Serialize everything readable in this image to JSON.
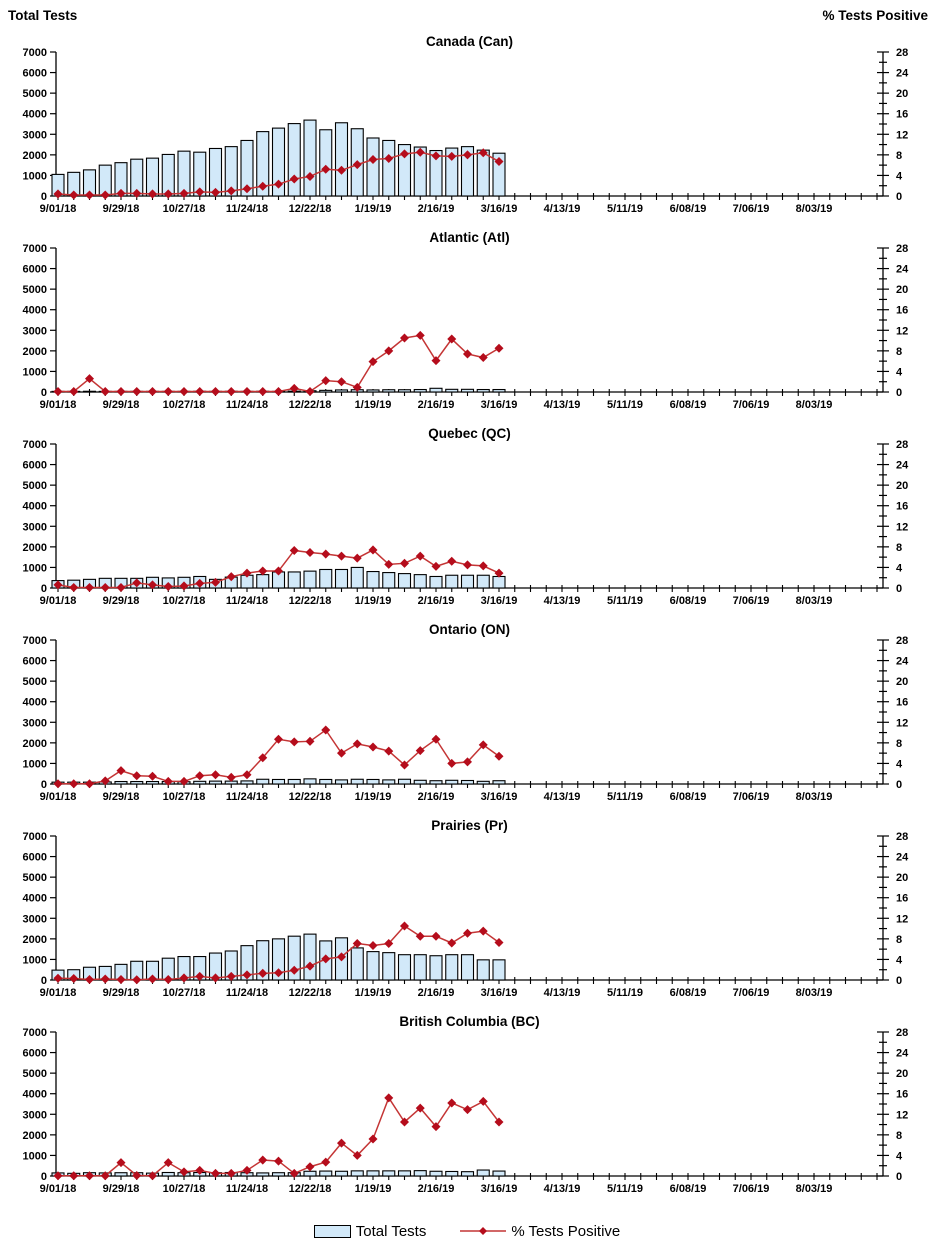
{
  "page": {
    "left_axis_title": "Total Tests",
    "right_axis_title": "% Tests Positive"
  },
  "legend": {
    "bar_label": "Total Tests",
    "line_label": "% Tests Positive"
  },
  "colors": {
    "bar_fill": "#d2e9f9",
    "bar_border": "#000000",
    "line": "#c43535",
    "marker": "#b50d1c",
    "axis": "#000000",
    "text": "#000000"
  },
  "chart_data": {
    "type": "combo-bar-line",
    "x_axis": {
      "tick_labels": [
        "9/01/18",
        "9/29/18",
        "10/27/18",
        "11/24/18",
        "12/22/18",
        "1/19/19",
        "2/16/19",
        "3/16/19",
        "4/13/19",
        "5/11/19",
        "6/08/19",
        "7/06/19",
        "8/03/19"
      ],
      "label_every_n_weeks": 4,
      "total_weeks_on_axis": 53
    },
    "weeks": [
      "9/01/18",
      "9/08/18",
      "9/15/18",
      "9/22/18",
      "9/29/18",
      "10/06/18",
      "10/13/18",
      "10/20/18",
      "10/27/18",
      "11/03/18",
      "11/10/18",
      "11/17/18",
      "11/24/18",
      "12/01/18",
      "12/08/18",
      "12/15/18",
      "12/22/18",
      "12/29/18",
      "1/05/19",
      "1/12/19",
      "1/19/19",
      "1/26/19",
      "2/02/19",
      "2/09/19",
      "2/16/19",
      "2/23/19",
      "3/02/19",
      "3/09/19",
      "3/16/19"
    ],
    "y_left": {
      "title": "Total Tests",
      "min": 0,
      "max": 7000,
      "step": 1000
    },
    "y_right": {
      "title": "% Tests Positive",
      "min": 0,
      "max": 28,
      "step": 4,
      "minor_step": 2
    },
    "charts": [
      {
        "title": "Canada (Can)",
        "slug": "canada",
        "series": [
          {
            "name": "Total Tests",
            "type": "bar",
            "values": [
              1050,
              1150,
              1270,
              1500,
              1620,
              1790,
              1840,
              2020,
              2180,
              2130,
              2310,
              2400,
              2700,
              3130,
              3300,
              3520,
              3690,
              3220,
              3560,
              3270,
              2820,
              2700,
              2500,
              2380,
              2210,
              2330,
              2400,
              2230,
              2080
            ]
          },
          {
            "name": "% Tests Positive",
            "type": "line",
            "values": [
              0.4,
              0.2,
              0.2,
              0.2,
              0.5,
              0.5,
              0.4,
              0.4,
              0.5,
              0.8,
              0.7,
              1.0,
              1.4,
              1.9,
              2.3,
              3.3,
              3.8,
              5.2,
              5.0,
              6.1,
              7.1,
              7.3,
              8.2,
              8.5,
              7.8,
              7.7,
              8.0,
              8.4,
              6.7
            ]
          }
        ]
      },
      {
        "title": "Atlantic (Atl)",
        "slug": "atlantic",
        "series": [
          {
            "name": "Total Tests",
            "type": "bar",
            "values": [
              30,
              30,
              35,
              30,
              30,
              30,
              30,
              30,
              30,
              35,
              30,
              35,
              30,
              35,
              30,
              40,
              60,
              80,
              100,
              110,
              100,
              110,
              110,
              120,
              180,
              130,
              130,
              120,
              120
            ]
          },
          {
            "name": "% Tests Positive",
            "type": "line",
            "values": [
              0.1,
              0.1,
              2.6,
              0.1,
              0.1,
              0.1,
              0.1,
              0.1,
              0.1,
              0.1,
              0.1,
              0.1,
              0.1,
              0.1,
              0.1,
              0.7,
              0.1,
              2.2,
              2.0,
              0.9,
              5.9,
              8.0,
              10.5,
              11.0,
              6.1,
              10.3,
              7.4,
              6.7,
              8.5
            ]
          }
        ]
      },
      {
        "title": "Quebec (QC)",
        "slug": "quebec",
        "series": [
          {
            "name": "Total Tests",
            "type": "bar",
            "values": [
              360,
              380,
              420,
              470,
              470,
              470,
              520,
              490,
              520,
              560,
              420,
              530,
              620,
              650,
              780,
              780,
              820,
              900,
              900,
              1000,
              800,
              750,
              700,
              650,
              560,
              620,
              620,
              620,
              560
            ]
          },
          {
            "name": "% Tests Positive",
            "type": "line",
            "values": [
              0.6,
              0.1,
              0.1,
              0.1,
              0.1,
              1.0,
              0.6,
              0.3,
              0.4,
              0.9,
              1.1,
              2.2,
              2.9,
              3.3,
              3.3,
              7.3,
              6.9,
              6.6,
              6.2,
              5.8,
              7.4,
              4.6,
              4.8,
              6.2,
              4.2,
              5.2,
              4.5,
              4.3,
              2.9
            ]
          }
        ]
      },
      {
        "title": "Ontario (ON)",
        "slug": "ontario",
        "series": [
          {
            "name": "Total Tests",
            "type": "bar",
            "values": [
              90,
              90,
              90,
              100,
              120,
              120,
              120,
              120,
              110,
              130,
              140,
              140,
              150,
              230,
              220,
              220,
              250,
              220,
              200,
              230,
              220,
              200,
              230,
              180,
              160,
              180,
              170,
              130,
              160
            ]
          },
          {
            "name": "% Tests Positive",
            "type": "line",
            "values": [
              0.05,
              0.05,
              0.05,
              0.6,
              2.6,
              1.6,
              1.5,
              0.5,
              0.5,
              1.6,
              1.8,
              1.3,
              1.8,
              5.1,
              8.7,
              8.2,
              8.3,
              10.5,
              6.0,
              7.8,
              7.2,
              6.4,
              3.7,
              6.5,
              8.7,
              4.0,
              4.3,
              7.6,
              5.4
            ]
          }
        ]
      },
      {
        "title": "Prairies (Pr)",
        "slug": "prairies",
        "series": [
          {
            "name": "Total Tests",
            "type": "bar",
            "values": [
              480,
              500,
              620,
              660,
              760,
              910,
              910,
              1060,
              1140,
              1140,
              1310,
              1410,
              1670,
              1910,
              2000,
              2130,
              2230,
              1900,
              2050,
              1560,
              1380,
              1330,
              1230,
              1230,
              1180,
              1230,
              1230,
              980,
              980
            ]
          },
          {
            "name": "% Tests Positive",
            "type": "line",
            "values": [
              0.35,
              0.3,
              0.1,
              0.2,
              0.1,
              0.05,
              0.2,
              0.1,
              0.4,
              0.7,
              0.4,
              0.7,
              1.0,
              1.3,
              1.4,
              1.9,
              2.7,
              4.1,
              4.5,
              7.1,
              6.7,
              7.1,
              10.5,
              8.5,
              8.5,
              7.2,
              9.1,
              9.5,
              7.3
            ]
          }
        ]
      },
      {
        "title": "British Columbia (BC)",
        "slug": "british-columbia",
        "series": [
          {
            "name": "Total Tests",
            "type": "bar",
            "values": [
              150,
              130,
              160,
              150,
              160,
              160,
              140,
              170,
              160,
              170,
              160,
              170,
              160,
              150,
              160,
              160,
              230,
              240,
              230,
              250,
              250,
              250,
              250,
              260,
              230,
              220,
              210,
              290,
              240
            ]
          },
          {
            "name": "% Tests Positive",
            "type": "line",
            "values": [
              0.05,
              0.05,
              0.05,
              0.05,
              2.6,
              0.1,
              0.05,
              2.6,
              0.8,
              1.1,
              0.5,
              0.5,
              1.1,
              3.1,
              2.9,
              0.5,
              1.8,
              2.7,
              6.4,
              4.0,
              7.2,
              15.2,
              10.5,
              13.2,
              9.6,
              14.2,
              12.9,
              14.5,
              10.5
            ]
          }
        ]
      }
    ]
  }
}
